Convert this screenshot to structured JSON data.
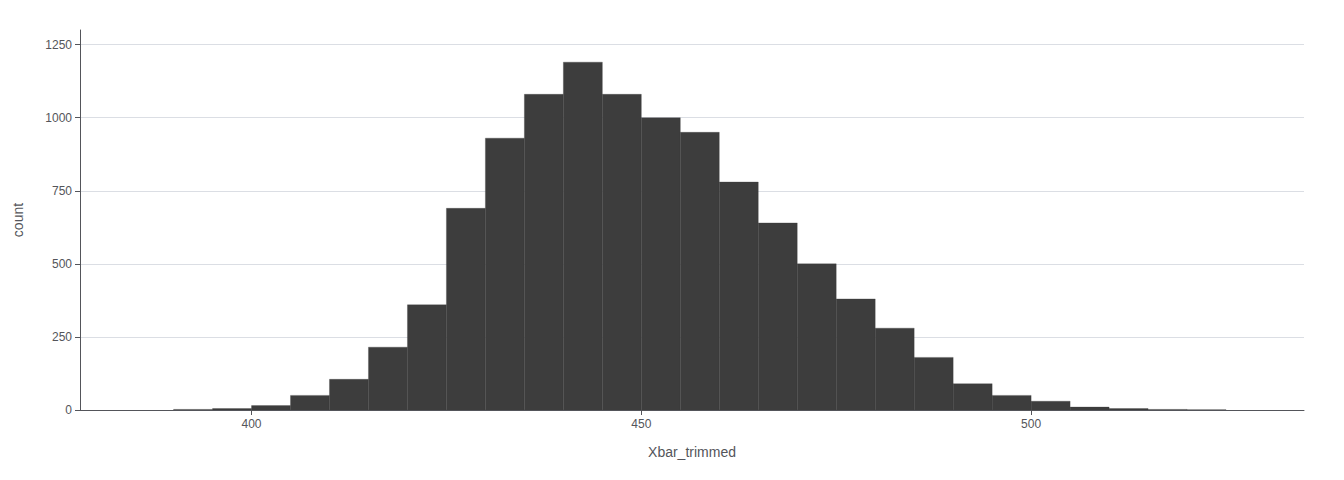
{
  "chart_data": {
    "type": "histogram",
    "xlabel": "Xbar_trimmed",
    "ylabel": "count",
    "color": "#3d3d3d",
    "bins": [
      390,
      395,
      400,
      405,
      410,
      415,
      420,
      425,
      430,
      435,
      440,
      445,
      450,
      455,
      460,
      465,
      470,
      475,
      480,
      485,
      490,
      495,
      500,
      505,
      510,
      515,
      520,
      525
    ],
    "counts": [
      2,
      5,
      15,
      50,
      105,
      215,
      360,
      690,
      930,
      1080,
      1190,
      1080,
      1000,
      950,
      780,
      640,
      500,
      380,
      280,
      180,
      90,
      50,
      30,
      10,
      5,
      2,
      1
    ],
    "xlim": [
      378,
      535
    ],
    "xticks": [
      400,
      450,
      500
    ],
    "ylim": [
      0,
      1300
    ],
    "yticks": [
      0,
      250,
      500,
      750,
      1000,
      1250
    ],
    "grid": true
  }
}
